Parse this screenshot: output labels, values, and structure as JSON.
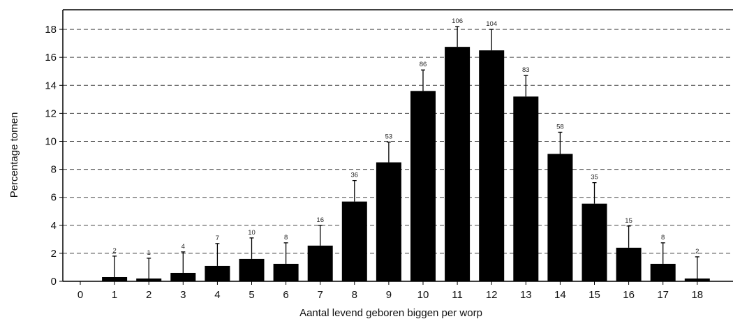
{
  "chart_data": {
    "type": "bar",
    "title": "",
    "xlabel": "Aantal levend geboren biggen per worp",
    "ylabel": "Percentage tomen",
    "categories": [
      "0",
      "1",
      "2",
      "3",
      "4",
      "5",
      "6",
      "7",
      "8",
      "9",
      "10",
      "11",
      "12",
      "13",
      "14",
      "15",
      "16",
      "17",
      "18"
    ],
    "values": [
      0,
      0.3,
      0.2,
      0.6,
      1.1,
      1.6,
      1.25,
      2.55,
      5.7,
      8.5,
      13.6,
      16.75,
      16.5,
      13.2,
      9.1,
      5.55,
      2.4,
      1.25,
      0.2
    ],
    "error_upper": [
      0,
      1.8,
      1.65,
      2.1,
      2.7,
      3.1,
      2.75,
      4.0,
      7.2,
      9.95,
      15.1,
      18.2,
      18.0,
      14.7,
      10.65,
      7.05,
      3.95,
      2.75,
      1.75
    ],
    "counts": [
      "",
      "2",
      "1",
      "4",
      "7",
      "10",
      "8",
      "16",
      "36",
      "53",
      "86",
      "106",
      "104",
      "83",
      "58",
      "35",
      "15",
      "8",
      "2"
    ],
    "ylim": [
      0,
      19.4
    ],
    "yticks": [
      "0",
      "2",
      "4",
      "6",
      "8",
      "10",
      "12",
      "14",
      "16",
      "18"
    ],
    "grid": "horizontal dashed",
    "colors": {
      "bar": "#000000",
      "grid": "#444444",
      "axis": "#000000"
    }
  }
}
